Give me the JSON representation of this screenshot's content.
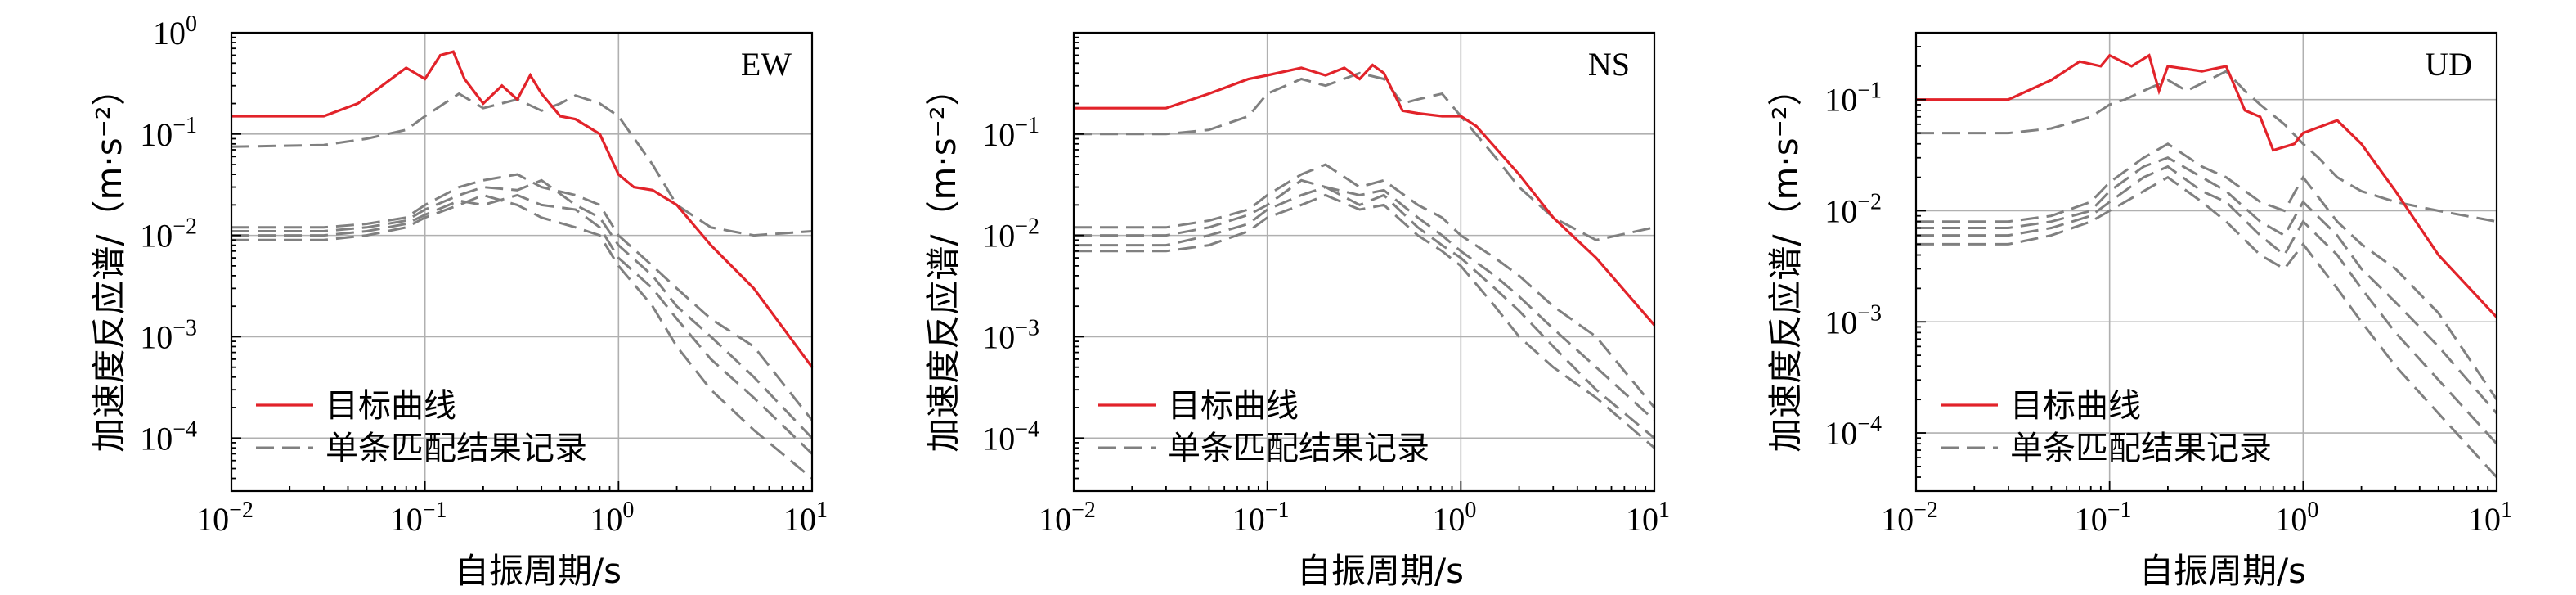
{
  "chart_data": [
    {
      "type": "line",
      "title": "EW",
      "xlabel": "自振周期/s",
      "ylabel": "加速度反应谱/（m·s⁻²）",
      "xscale": "log",
      "yscale": "log",
      "xlim": [
        0.01,
        10
      ],
      "ylim": [
        3e-05,
        1
      ],
      "xticks": [
        {
          "base": "10",
          "exp": "−2"
        },
        {
          "base": "10",
          "exp": "−1"
        },
        {
          "base": "10",
          "exp": "0"
        },
        {
          "base": "10",
          "exp": "1"
        }
      ],
      "yticks": [
        {
          "base": "10",
          "exp": "−4"
        },
        {
          "base": "10",
          "exp": "−3"
        },
        {
          "base": "10",
          "exp": "−2"
        },
        {
          "base": "10",
          "exp": "−1"
        },
        {
          "base": "10",
          "exp": "0"
        }
      ],
      "grid": true,
      "legend_position": "lower-left",
      "series": [
        {
          "name": "目标曲线",
          "style": "solid",
          "color": "#e2232a",
          "x": [
            0.01,
            0.03,
            0.045,
            0.06,
            0.08,
            0.1,
            0.12,
            0.14,
            0.16,
            0.2,
            0.25,
            0.3,
            0.35,
            0.4,
            0.5,
            0.6,
            0.8,
            1.0,
            1.2,
            1.5,
            2.0,
            3.0,
            5.0,
            10.0
          ],
          "y": [
            0.15,
            0.15,
            0.2,
            0.3,
            0.45,
            0.35,
            0.6,
            0.65,
            0.35,
            0.2,
            0.3,
            0.22,
            0.38,
            0.25,
            0.15,
            0.14,
            0.1,
            0.04,
            0.03,
            0.028,
            0.02,
            0.008,
            0.003,
            0.0005
          ]
        },
        {
          "name": "单条匹配结果记录",
          "style": "dashed",
          "color": "#808080",
          "x": [
            0.01,
            0.03,
            0.05,
            0.08,
            0.1,
            0.15,
            0.2,
            0.3,
            0.4,
            0.5,
            0.6,
            0.8,
            1.0,
            1.5,
            2.0,
            3.0,
            5.0,
            10.0
          ],
          "y": [
            0.075,
            0.078,
            0.09,
            0.11,
            0.15,
            0.25,
            0.18,
            0.22,
            0.17,
            0.2,
            0.24,
            0.2,
            0.15,
            0.05,
            0.02,
            0.012,
            0.01,
            0.011
          ]
        },
        {
          "name": "",
          "style": "dashed",
          "color": "#808080",
          "x": [
            0.01,
            0.03,
            0.05,
            0.08,
            0.1,
            0.15,
            0.2,
            0.3,
            0.4,
            0.6,
            0.8,
            1.0,
            1.5,
            2.0,
            3.0,
            5.0,
            10.0
          ],
          "y": [
            0.012,
            0.012,
            0.013,
            0.015,
            0.02,
            0.03,
            0.035,
            0.04,
            0.03,
            0.025,
            0.02,
            0.01,
            0.005,
            0.003,
            0.0015,
            0.0008,
            0.00015
          ]
        },
        {
          "name": "",
          "style": "dashed",
          "color": "#808080",
          "x": [
            0.01,
            0.03,
            0.05,
            0.08,
            0.1,
            0.15,
            0.2,
            0.3,
            0.4,
            0.6,
            0.8,
            1.0,
            1.5,
            2.0,
            3.0,
            5.0,
            10.0
          ],
          "y": [
            0.011,
            0.011,
            0.012,
            0.014,
            0.018,
            0.025,
            0.03,
            0.028,
            0.035,
            0.02,
            0.015,
            0.008,
            0.004,
            0.002,
            0.001,
            0.0004,
            0.0001
          ]
        },
        {
          "name": "",
          "style": "dashed",
          "color": "#808080",
          "x": [
            0.01,
            0.03,
            0.05,
            0.08,
            0.1,
            0.15,
            0.2,
            0.3,
            0.4,
            0.6,
            0.8,
            1.0,
            1.5,
            2.0,
            3.0,
            5.0,
            10.0
          ],
          "y": [
            0.01,
            0.01,
            0.011,
            0.013,
            0.016,
            0.022,
            0.02,
            0.025,
            0.02,
            0.018,
            0.012,
            0.006,
            0.003,
            0.0015,
            0.0006,
            0.00025,
            7e-05
          ]
        },
        {
          "name": "",
          "style": "dashed",
          "color": "#808080",
          "x": [
            0.01,
            0.03,
            0.05,
            0.08,
            0.1,
            0.15,
            0.2,
            0.3,
            0.4,
            0.6,
            0.8,
            1.0,
            1.5,
            2.0,
            3.0,
            5.0,
            10.0
          ],
          "y": [
            0.009,
            0.009,
            0.01,
            0.012,
            0.015,
            0.02,
            0.025,
            0.02,
            0.015,
            0.012,
            0.01,
            0.005,
            0.002,
            0.0008,
            0.0003,
            0.00012,
            4e-05
          ]
        }
      ]
    },
    {
      "type": "line",
      "title": "NS",
      "xlabel": "自振周期/s",
      "ylabel": "加速度反应谱/（m·s⁻²）",
      "xscale": "log",
      "yscale": "log",
      "xlim": [
        0.01,
        10
      ],
      "ylim": [
        3e-05,
        1
      ],
      "xticks": [
        {
          "base": "10",
          "exp": "−2"
        },
        {
          "base": "10",
          "exp": "−1"
        },
        {
          "base": "10",
          "exp": "0"
        },
        {
          "base": "10",
          "exp": "1"
        }
      ],
      "yticks": [
        {
          "base": "10",
          "exp": "−4"
        },
        {
          "base": "10",
          "exp": "−3"
        },
        {
          "base": "10",
          "exp": "−2"
        },
        {
          "base": "10",
          "exp": "−1"
        }
      ],
      "grid": true,
      "legend_position": "lower-left",
      "series": [
        {
          "name": "目标曲线",
          "style": "solid",
          "color": "#e2232a",
          "x": [
            0.01,
            0.03,
            0.05,
            0.08,
            0.1,
            0.15,
            0.2,
            0.25,
            0.3,
            0.35,
            0.4,
            0.5,
            0.6,
            0.8,
            1.0,
            1.2,
            2.0,
            3.0,
            5.0,
            10.0
          ],
          "y": [
            0.18,
            0.18,
            0.25,
            0.35,
            0.38,
            0.45,
            0.38,
            0.45,
            0.35,
            0.48,
            0.4,
            0.17,
            0.16,
            0.15,
            0.15,
            0.12,
            0.04,
            0.015,
            0.006,
            0.0013
          ]
        },
        {
          "name": "单条匹配结果记录",
          "style": "dashed",
          "color": "#808080",
          "x": [
            0.01,
            0.03,
            0.05,
            0.08,
            0.1,
            0.15,
            0.2,
            0.3,
            0.4,
            0.5,
            0.6,
            0.8,
            1.0,
            1.5,
            2.0,
            3.0,
            5.0,
            10.0
          ],
          "y": [
            0.1,
            0.1,
            0.11,
            0.15,
            0.25,
            0.35,
            0.3,
            0.4,
            0.35,
            0.2,
            0.22,
            0.25,
            0.15,
            0.06,
            0.03,
            0.015,
            0.009,
            0.012
          ]
        },
        {
          "name": "",
          "style": "dashed",
          "color": "#808080",
          "x": [
            0.01,
            0.03,
            0.05,
            0.08,
            0.1,
            0.15,
            0.2,
            0.3,
            0.4,
            0.6,
            0.8,
            1.0,
            1.5,
            2.0,
            3.0,
            5.0,
            10.0
          ],
          "y": [
            0.012,
            0.012,
            0.014,
            0.018,
            0.025,
            0.04,
            0.05,
            0.03,
            0.035,
            0.02,
            0.015,
            0.01,
            0.006,
            0.004,
            0.002,
            0.001,
            0.0002
          ]
        },
        {
          "name": "",
          "style": "dashed",
          "color": "#808080",
          "x": [
            0.01,
            0.03,
            0.05,
            0.08,
            0.1,
            0.15,
            0.2,
            0.3,
            0.4,
            0.6,
            0.8,
            1.0,
            1.5,
            2.0,
            3.0,
            5.0,
            10.0
          ],
          "y": [
            0.01,
            0.01,
            0.012,
            0.016,
            0.02,
            0.035,
            0.03,
            0.025,
            0.028,
            0.015,
            0.01,
            0.007,
            0.004,
            0.0025,
            0.0012,
            0.0005,
            0.00015
          ]
        },
        {
          "name": "",
          "style": "dashed",
          "color": "#808080",
          "x": [
            0.01,
            0.03,
            0.05,
            0.08,
            0.1,
            0.15,
            0.2,
            0.3,
            0.4,
            0.6,
            0.8,
            1.0,
            1.5,
            2.0,
            3.0,
            5.0,
            10.0
          ],
          "y": [
            0.008,
            0.008,
            0.01,
            0.013,
            0.018,
            0.025,
            0.03,
            0.02,
            0.025,
            0.012,
            0.008,
            0.006,
            0.003,
            0.0018,
            0.0008,
            0.0003,
            0.0001
          ]
        },
        {
          "name": "",
          "style": "dashed",
          "color": "#808080",
          "x": [
            0.01,
            0.03,
            0.05,
            0.08,
            0.1,
            0.15,
            0.2,
            0.3,
            0.4,
            0.6,
            0.8,
            1.0,
            1.5,
            2.0,
            3.0,
            5.0,
            10.0
          ],
          "y": [
            0.007,
            0.007,
            0.008,
            0.011,
            0.015,
            0.02,
            0.025,
            0.018,
            0.02,
            0.01,
            0.007,
            0.005,
            0.002,
            0.001,
            0.0005,
            0.00025,
            8e-05
          ]
        }
      ]
    },
    {
      "type": "line",
      "title": "UD",
      "xlabel": "自振周期/s",
      "ylabel": "加速度反应谱/（m·s⁻²）",
      "xscale": "log",
      "yscale": "log",
      "xlim": [
        0.01,
        10
      ],
      "ylim": [
        3e-05,
        0.4
      ],
      "xticks": [
        {
          "base": "10",
          "exp": "−2"
        },
        {
          "base": "10",
          "exp": "−1"
        },
        {
          "base": "10",
          "exp": "0"
        },
        {
          "base": "10",
          "exp": "1"
        }
      ],
      "yticks": [
        {
          "base": "10",
          "exp": "−4"
        },
        {
          "base": "10",
          "exp": "−3"
        },
        {
          "base": "10",
          "exp": "−2"
        },
        {
          "base": "10",
          "exp": "−1"
        }
      ],
      "grid": true,
      "legend_position": "lower-left",
      "series": [
        {
          "name": "目标曲线",
          "style": "solid",
          "color": "#e2232a",
          "x": [
            0.01,
            0.03,
            0.05,
            0.07,
            0.09,
            0.1,
            0.13,
            0.16,
            0.18,
            0.2,
            0.3,
            0.4,
            0.5,
            0.6,
            0.7,
            0.9,
            1.0,
            1.5,
            2.0,
            3.0,
            5.0,
            10.0
          ],
          "y": [
            0.1,
            0.1,
            0.15,
            0.22,
            0.2,
            0.25,
            0.2,
            0.25,
            0.12,
            0.2,
            0.18,
            0.2,
            0.08,
            0.07,
            0.035,
            0.04,
            0.05,
            0.065,
            0.04,
            0.015,
            0.004,
            0.0011
          ]
        },
        {
          "name": "单条匹配结果记录",
          "style": "dashed",
          "color": "#808080",
          "x": [
            0.01,
            0.03,
            0.05,
            0.08,
            0.1,
            0.12,
            0.15,
            0.2,
            0.25,
            0.3,
            0.4,
            0.5,
            0.6,
            0.8,
            1.0,
            1.2,
            1.5,
            2.0,
            3.0,
            5.0,
            10.0
          ],
          "y": [
            0.05,
            0.05,
            0.055,
            0.07,
            0.09,
            0.1,
            0.12,
            0.15,
            0.12,
            0.14,
            0.18,
            0.12,
            0.09,
            0.06,
            0.04,
            0.03,
            0.02,
            0.015,
            0.012,
            0.01,
            0.008
          ]
        },
        {
          "name": "",
          "style": "dashed",
          "color": "#808080",
          "x": [
            0.01,
            0.03,
            0.05,
            0.08,
            0.1,
            0.15,
            0.2,
            0.3,
            0.4,
            0.6,
            0.8,
            1.0,
            1.5,
            2.0,
            3.0,
            5.0,
            10.0
          ],
          "y": [
            0.008,
            0.008,
            0.009,
            0.012,
            0.018,
            0.03,
            0.04,
            0.025,
            0.02,
            0.012,
            0.01,
            0.02,
            0.008,
            0.005,
            0.003,
            0.0012,
            0.0002
          ]
        },
        {
          "name": "",
          "style": "dashed",
          "color": "#808080",
          "x": [
            0.01,
            0.03,
            0.05,
            0.08,
            0.1,
            0.15,
            0.2,
            0.3,
            0.4,
            0.6,
            0.8,
            1.0,
            1.5,
            2.0,
            3.0,
            5.0,
            10.0
          ],
          "y": [
            0.007,
            0.007,
            0.008,
            0.01,
            0.015,
            0.025,
            0.03,
            0.02,
            0.015,
            0.008,
            0.006,
            0.012,
            0.006,
            0.003,
            0.0015,
            0.0006,
            0.00015
          ]
        },
        {
          "name": "",
          "style": "dashed",
          "color": "#808080",
          "x": [
            0.01,
            0.03,
            0.05,
            0.08,
            0.1,
            0.15,
            0.2,
            0.3,
            0.4,
            0.6,
            0.8,
            1.0,
            1.5,
            2.0,
            3.0,
            5.0,
            10.0
          ],
          "y": [
            0.006,
            0.006,
            0.007,
            0.009,
            0.012,
            0.02,
            0.025,
            0.015,
            0.012,
            0.006,
            0.004,
            0.008,
            0.004,
            0.002,
            0.0008,
            0.0003,
            8e-05
          ]
        },
        {
          "name": "",
          "style": "dashed",
          "color": "#808080",
          "x": [
            0.01,
            0.03,
            0.05,
            0.08,
            0.1,
            0.15,
            0.2,
            0.3,
            0.4,
            0.6,
            0.8,
            1.0,
            1.5,
            2.0,
            3.0,
            5.0,
            10.0
          ],
          "y": [
            0.005,
            0.005,
            0.006,
            0.008,
            0.01,
            0.015,
            0.02,
            0.012,
            0.008,
            0.004,
            0.003,
            0.005,
            0.002,
            0.001,
            0.0004,
            0.00015,
            4e-05
          ]
        }
      ]
    }
  ]
}
